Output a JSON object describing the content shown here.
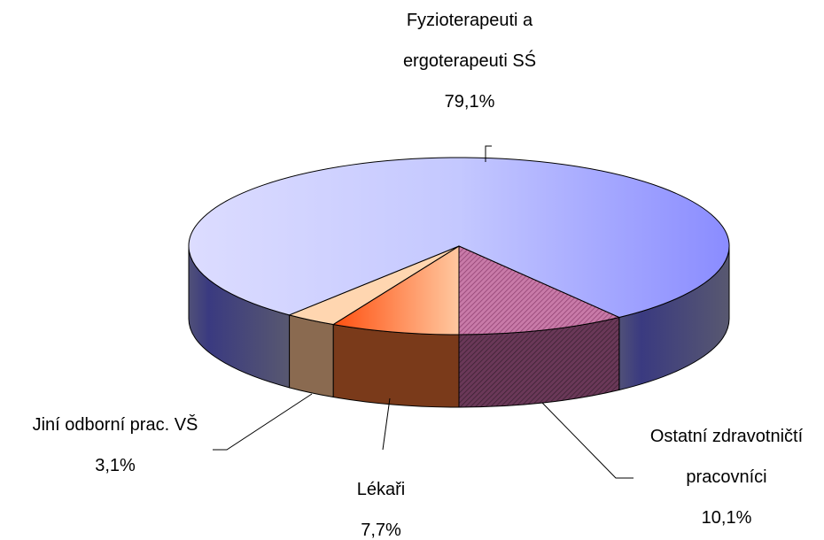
{
  "chart_data": {
    "type": "pie3d",
    "categories": [
      "Lékaři",
      "Jiní odborní prac. VŠ",
      "Fyzioterapeuti a ergoterapeuti SŚ",
      "Ostatní zdravotničtí pracovníci"
    ],
    "values": [
      7.7,
      3.1,
      79.1,
      10.1
    ],
    "value_labels": [
      "7,7%",
      "3,1%",
      "79,1%",
      "10,1%"
    ],
    "colors": [
      "#ff8040",
      "#ffd6b0",
      "#b8baff",
      "#b06090"
    ]
  }
}
